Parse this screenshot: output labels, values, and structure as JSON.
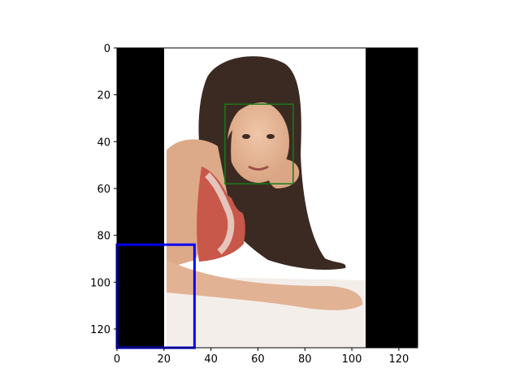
{
  "figure": {
    "image_description_hidden": false,
    "image_extent": {
      "x": [
        0,
        128
      ],
      "y": [
        128,
        0
      ]
    },
    "left_black_band": {
      "x_start": 0,
      "x_end": 20
    },
    "right_black_band": {
      "x_start": 106,
      "x_end": 128
    },
    "colors": {
      "background": "#ffffff",
      "band": "#000000",
      "face_box": "#1a7a1a",
      "blue_box": "#0000ff",
      "hair": "#3b2a22",
      "skin": "#e4b596",
      "dress_red": "#c8584a",
      "dress_light": "#ead7cf",
      "table": "#f6f1ee"
    },
    "face_box": {
      "x0": 46,
      "y0": 24,
      "x1": 75,
      "y1": 58
    },
    "blue_box": {
      "x0": 0,
      "y0": 84,
      "x1": 33,
      "y1": 128
    }
  },
  "axes": {
    "x_ticks": [
      0,
      20,
      40,
      60,
      80,
      100,
      120
    ],
    "y_ticks": [
      0,
      20,
      40,
      60,
      80,
      100,
      120
    ]
  }
}
